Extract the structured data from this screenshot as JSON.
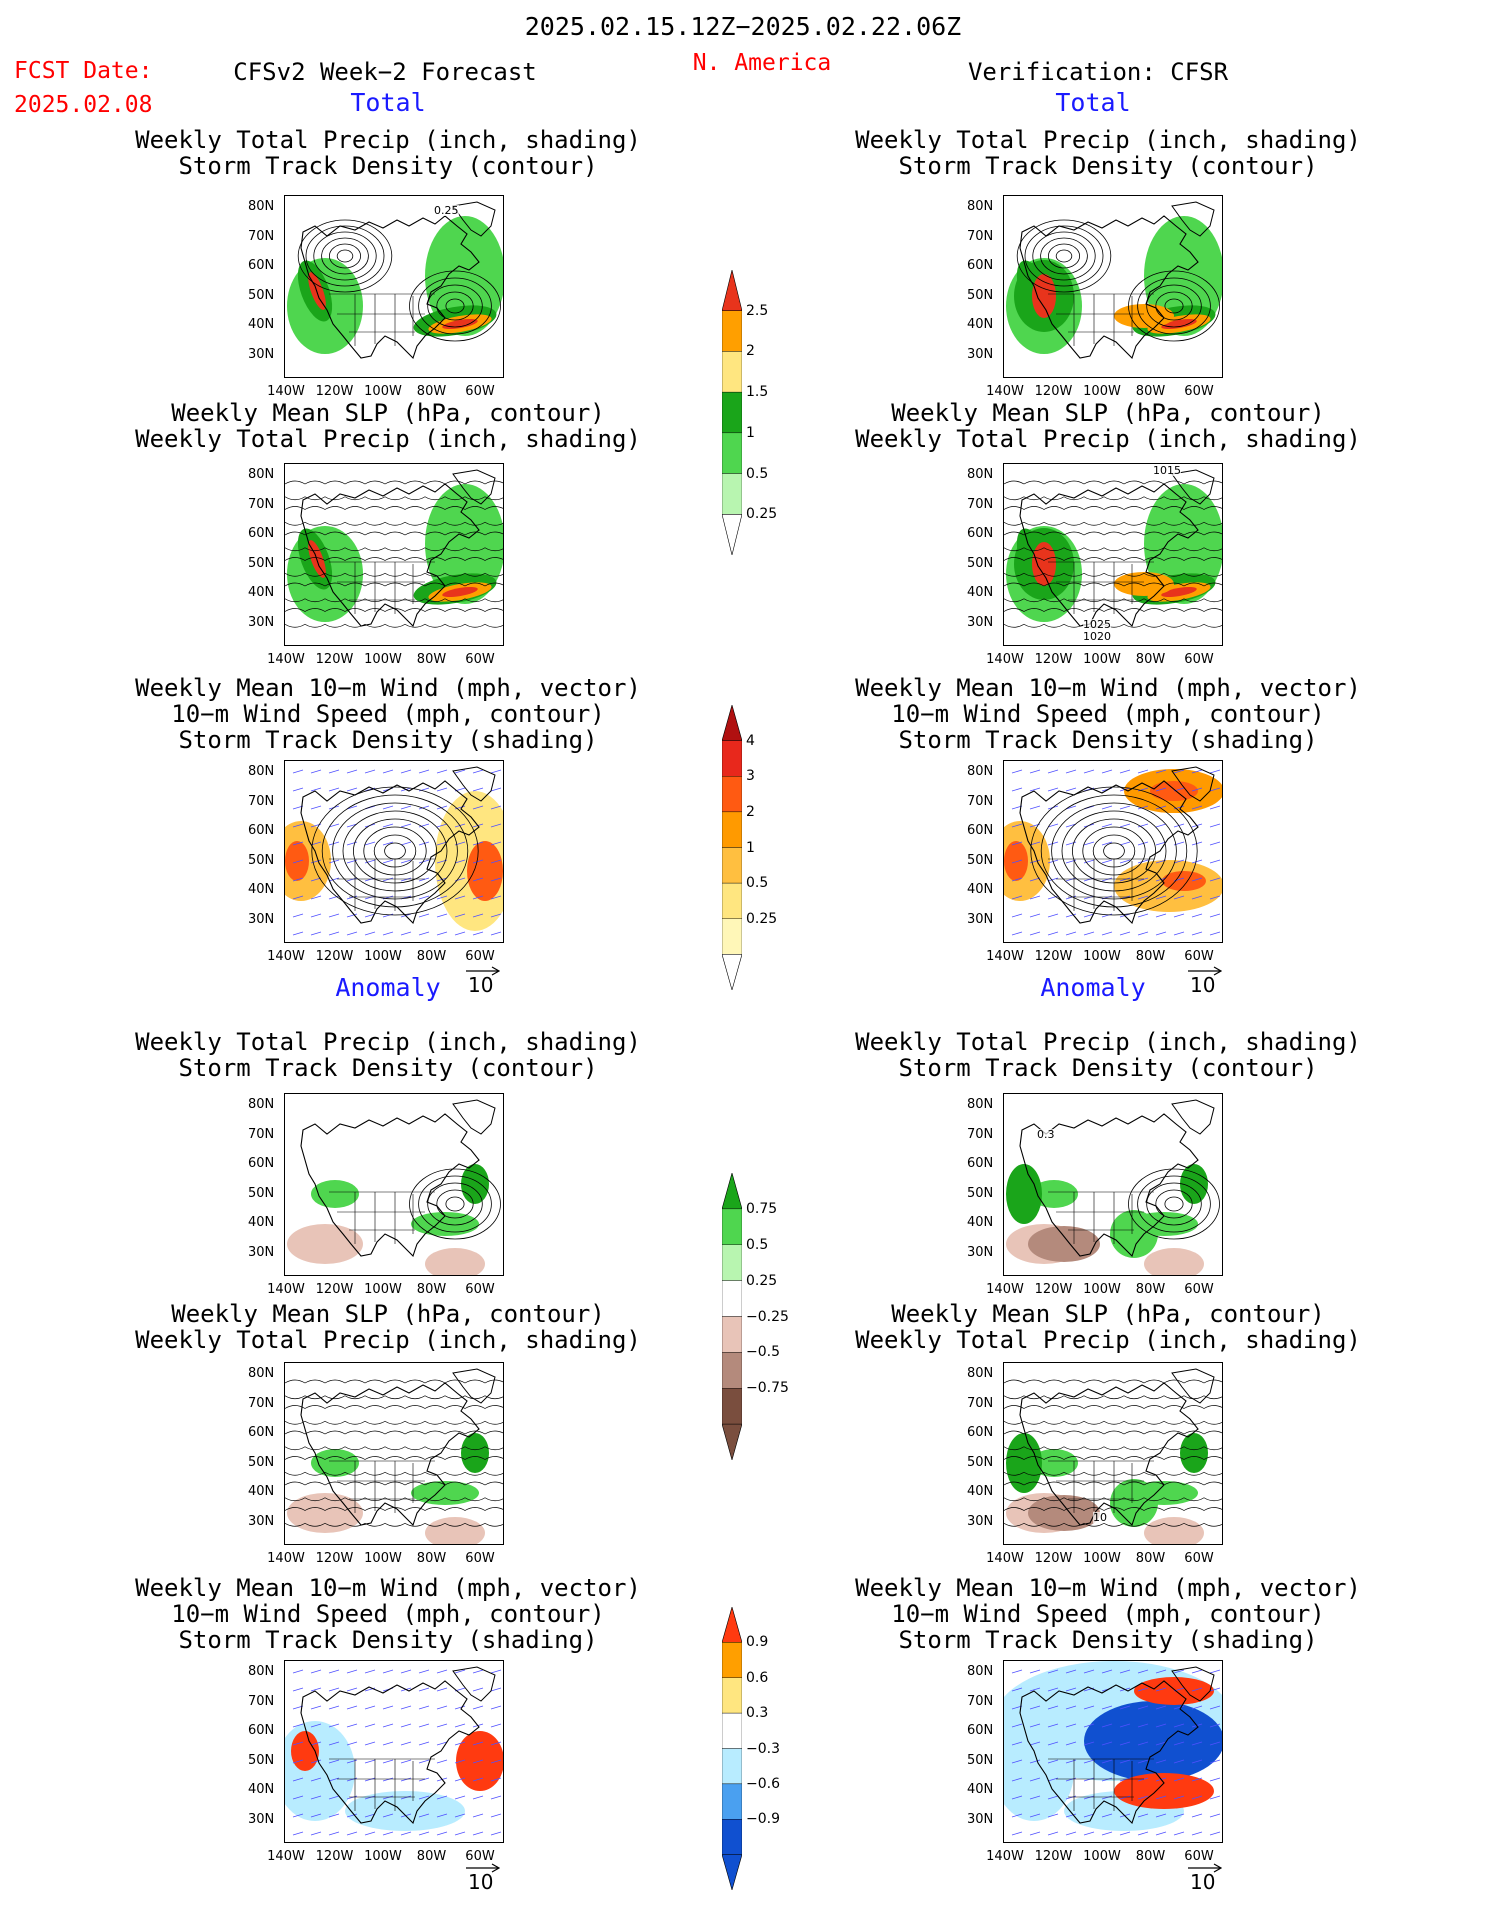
{
  "header": {
    "period": "2025.02.15.12Z−2025.02.22.06Z",
    "fcst_label": "FCST Date:",
    "fcst_date": "2025.02.08",
    "left_model": "CFSv2 Week−2 Forecast",
    "region": "N. America",
    "right_model": "Verification: CFSR"
  },
  "sections": {
    "total": "Total",
    "anomaly": "Anomaly"
  },
  "panel_titles": {
    "precip_storm": [
      "Weekly Total Precip (inch, shading)",
      "Storm Track Density (contour)"
    ],
    "slp_precip": [
      "Weekly Mean SLP (hPa, contour)",
      "Weekly Total Precip (inch, shading)"
    ],
    "wind_storm": [
      "Weekly Mean 10−m Wind (mph, vector)",
      "10−m Wind Speed (mph, contour)",
      "Storm Track Density (shading)"
    ]
  },
  "axes": {
    "lat_labels": [
      "80N",
      "70N",
      "60N",
      "50N",
      "40N",
      "30N"
    ],
    "lon_labels": [
      "140W",
      "120W",
      "100W",
      "80W",
      "60W"
    ]
  },
  "vector_reference": "10",
  "contour_labels": {
    "fcst_storm": "0.25",
    "cfsr_slp_high": "1015",
    "cfsr_slp_low1": "1025",
    "cfsr_slp_low2": "1020",
    "cfsr_anom_storm": "0.3",
    "cfsr_anom_slp": "10"
  },
  "colorbars": {
    "precip_total": {
      "labels": [
        "2.5",
        "2",
        "1.5",
        "1",
        "0.5",
        "0.25"
      ],
      "colors": [
        "#e8341c",
        "#ff9f00",
        "#ffe680",
        "#1aa51a",
        "#4fd64f",
        "#b8f5b0"
      ]
    },
    "storm_total": {
      "labels": [
        "4",
        "3",
        "2",
        "1",
        "0.5",
        "0.25"
      ],
      "colors": [
        "#b01010",
        "#e8281c",
        "#ff5a12",
        "#ff9a00",
        "#ffbf40",
        "#ffe680",
        "#fff7b8"
      ]
    },
    "precip_anom": {
      "labels": [
        "0.75",
        "0.5",
        "0.25",
        "−0.25",
        "−0.5",
        "−0.75"
      ],
      "colors": [
        "#1aa51a",
        "#4fd64f",
        "#b8f5b0",
        "#ffffff",
        "#e8c4b8",
        "#b48a7c",
        "#7a4e3e"
      ]
    },
    "storm_anom": {
      "labels": [
        "0.9",
        "0.6",
        "0.3",
        "−0.3",
        "−0.6",
        "−0.9"
      ],
      "colors": [
        "#ff3a10",
        "#ff9f00",
        "#ffe680",
        "#ffffff",
        "#b8ecff",
        "#4aa0f0",
        "#1050d0"
      ]
    }
  }
}
